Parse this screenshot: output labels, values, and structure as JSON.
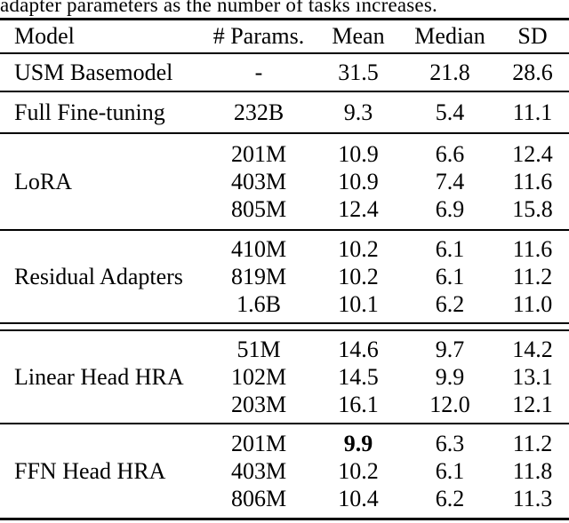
{
  "caption": "adapter parameters as the number of tasks increases.",
  "table": {
    "columns": [
      "Model",
      "# Params.",
      "Mean",
      "Median",
      "SD"
    ],
    "sections": [
      {
        "model": "USM Basemodel",
        "rows": [
          {
            "params": "-",
            "mean": "31.5",
            "median": "21.8",
            "sd": "28.6"
          }
        ]
      },
      {
        "model": "Full Fine-tuning",
        "rows": [
          {
            "params": "232B",
            "mean": "9.3",
            "median": "5.4",
            "sd": "11.1"
          }
        ]
      },
      {
        "model": "LoRA",
        "rows": [
          {
            "params": "201M",
            "mean": "10.9",
            "median": "6.6",
            "sd": "12.4"
          },
          {
            "params": "403M",
            "mean": "10.9",
            "median": "7.4",
            "sd": "11.6"
          },
          {
            "params": "805M",
            "mean": "12.4",
            "median": "6.9",
            "sd": "15.8"
          }
        ]
      },
      {
        "model": "Residual Adapters",
        "rows": [
          {
            "params": "410M",
            "mean": "10.2",
            "median": "6.1",
            "sd": "11.6"
          },
          {
            "params": "819M",
            "mean": "10.2",
            "median": "6.1",
            "sd": "11.2"
          },
          {
            "params": "1.6B",
            "mean": "10.1",
            "median": "6.2",
            "sd": "11.0"
          }
        ]
      },
      {
        "model": "Linear Head HRA",
        "rows": [
          {
            "params": "51M",
            "mean": "14.6",
            "median": "9.7",
            "sd": "14.2"
          },
          {
            "params": "102M",
            "mean": "14.5",
            "median": "9.9",
            "sd": "13.1"
          },
          {
            "params": "203M",
            "mean": "16.1",
            "median": "12.0",
            "sd": "12.1"
          }
        ]
      },
      {
        "model": "FFN Head HRA",
        "rows": [
          {
            "params": "201M",
            "mean": "9.9",
            "median": "6.3",
            "sd": "11.2"
          },
          {
            "params": "403M",
            "mean": "10.2",
            "median": "6.1",
            "sd": "11.8"
          },
          {
            "params": "806M",
            "mean": "10.4",
            "median": "6.2",
            "sd": "11.3"
          }
        ]
      }
    ]
  }
}
